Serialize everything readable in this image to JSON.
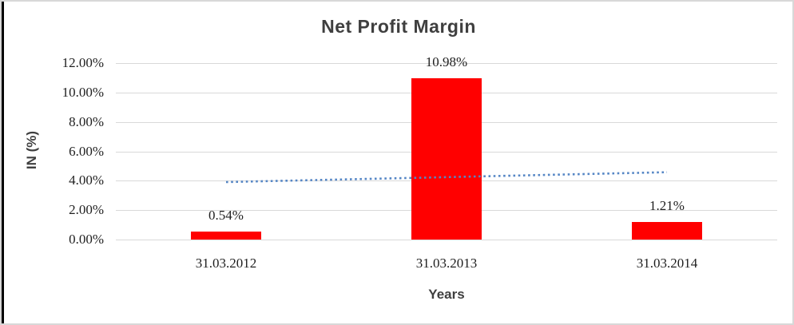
{
  "frame": {
    "background": "#ffffff",
    "border_color": "#d8d8d8",
    "left_edge_color": "#000000"
  },
  "chart_data": {
    "type": "bar",
    "title": "Net Profit Margin",
    "xlabel": "Years",
    "ylabel": "IN (%)",
    "categories": [
      "31.03.2012",
      "31.03.2013",
      "31.03.2014"
    ],
    "values": [
      0.54,
      10.98,
      1.21
    ],
    "data_labels": [
      "0.54%",
      "10.98%",
      "1.21%"
    ],
    "y_ticks": [
      {
        "label": "12.00%",
        "value": 12
      },
      {
        "label": "10.00%",
        "value": 10
      },
      {
        "label": "8.00%",
        "value": 8
      },
      {
        "label": "6.00%",
        "value": 6
      },
      {
        "label": "4.00%",
        "value": 4
      },
      {
        "label": "2.00%",
        "value": 2
      },
      {
        "label": "0.00%",
        "value": 0
      }
    ],
    "ylim": [
      0,
      12
    ],
    "grid": true,
    "legend": "none",
    "bar_color": "#ff0000",
    "trendline": {
      "type": "linear",
      "style": "dotted",
      "color": "#5586c5",
      "start_value": 3.91,
      "end_value": 4.58
    }
  }
}
